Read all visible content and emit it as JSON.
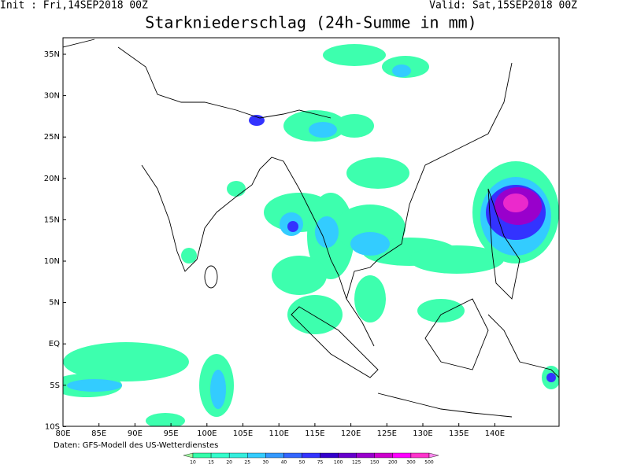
{
  "header": {
    "init": "Init : Fri,14SEP2018 00Z",
    "valid": "Valid: Sat,15SEP2018 00Z",
    "title": "Starkniederschlag (24h-Summe in mm)"
  },
  "map": {
    "lat_labels": [
      "35N",
      "30N",
      "25N",
      "20N",
      "15N",
      "10N",
      "5N",
      "EQ",
      "5S",
      "10S"
    ],
    "lon_labels": [
      "80E",
      "85E",
      "90E",
      "95E",
      "100E",
      "105E",
      "110E",
      "115E",
      "120E",
      "125E",
      "130E",
      "135E",
      "140E"
    ]
  },
  "footer": "Daten: GFS-Modell des US-Wetterdienstes",
  "legend": {
    "labels": [
      "10",
      "15",
      "20",
      "25",
      "30",
      "40",
      "50",
      "75",
      "100",
      "125",
      "150",
      "200",
      "300",
      "500"
    ],
    "colors": [
      "#a0ffa0",
      "#33ffaa",
      "#33ffcc",
      "#33eedd",
      "#33ccff",
      "#3399ff",
      "#3366ff",
      "#3333ff",
      "#3300cc",
      "#6600cc",
      "#9900cc",
      "#cc00cc",
      "#ff00ff",
      "#ff33cc",
      "#ff88ee"
    ]
  }
}
